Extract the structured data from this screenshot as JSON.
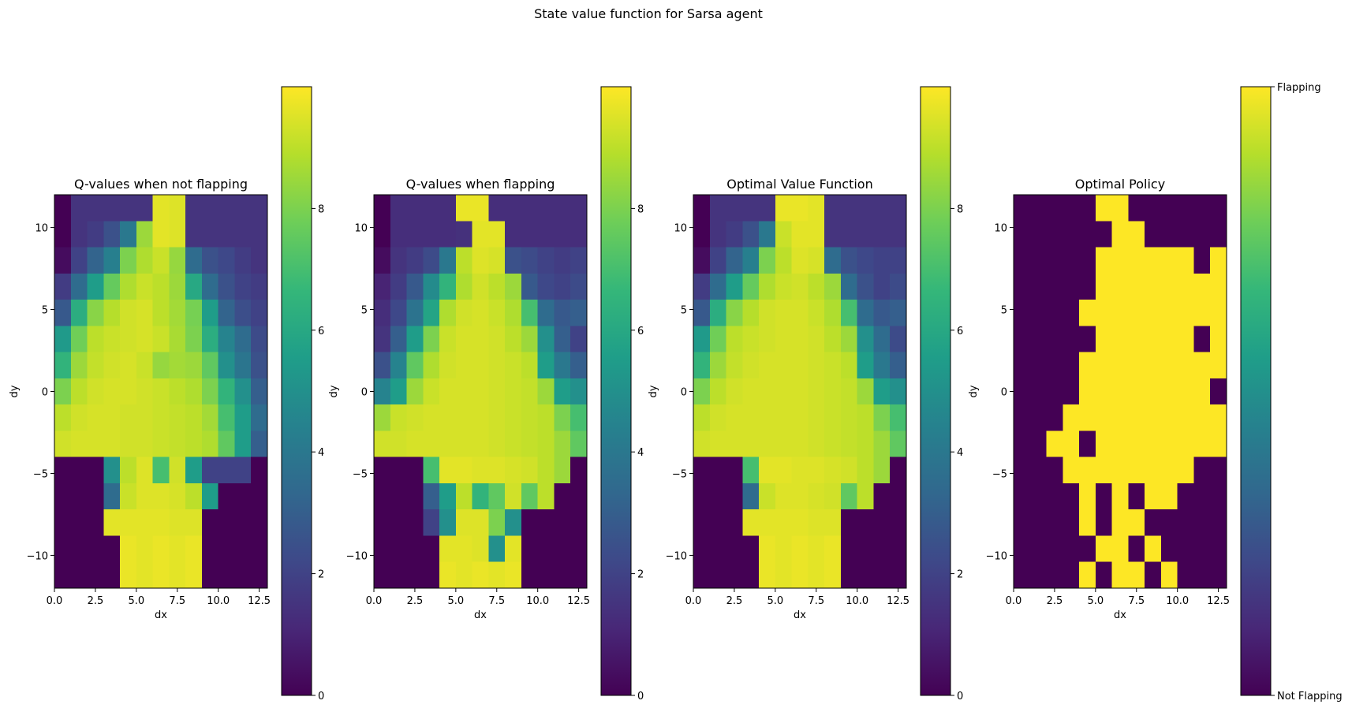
{
  "figure": {
    "suptitle": "State value function for Sarsa agent"
  },
  "colormap": {
    "name": "viridis",
    "stops": [
      "#440154",
      "#482878",
      "#3e4989",
      "#31688e",
      "#26828e",
      "#1f9e89",
      "#35b779",
      "#6ece58",
      "#b5de2b",
      "#fde725"
    ]
  },
  "chart_data": [
    {
      "type": "heatmap",
      "title": "Q-values when not flapping",
      "xlabel": "dx",
      "ylabel": "dy",
      "xlim": [
        0,
        13
      ],
      "ylim": [
        -12,
        12
      ],
      "xticks": [
        0,
        2.5,
        5,
        7.5,
        10,
        12.5
      ],
      "xtick_labels": [
        "0.0",
        "2.5",
        "5.0",
        "7.5",
        "10.0",
        "12.5"
      ],
      "yticks": [
        10,
        5,
        0,
        -5,
        -10
      ],
      "ytick_labels": [
        "10",
        "5",
        "0",
        "−5",
        "−10"
      ],
      "value_range": [
        0,
        10
      ],
      "colorbar": {
        "ticks": [
          0,
          2,
          4,
          6,
          8
        ],
        "labels": [
          "0",
          "2",
          "4",
          "6",
          "8"
        ]
      },
      "grid": false,
      "cell_size": {
        "dx": 1,
        "dy": 1.6
      },
      "rows_top_to_bottom": [
        [
          0.0,
          1.5,
          1.5,
          1.5,
          1.5,
          1.5,
          9.6,
          9.5,
          1.5,
          1.5,
          1.5,
          1.5,
          1.5
        ],
        [
          0.0,
          1.5,
          1.8,
          2.5,
          4.0,
          8.5,
          9.6,
          9.5,
          1.5,
          1.5,
          1.5,
          1.5,
          1.5
        ],
        [
          0.3,
          2.0,
          3.2,
          4.3,
          8.0,
          8.8,
          9.2,
          8.4,
          3.5,
          2.5,
          2.2,
          1.8,
          1.5
        ],
        [
          1.8,
          3.5,
          5.5,
          7.6,
          8.8,
          9.2,
          9.0,
          8.5,
          6.0,
          3.5,
          2.5,
          2.0,
          1.8
        ],
        [
          2.8,
          6.2,
          8.2,
          8.9,
          9.3,
          9.4,
          9.0,
          8.6,
          7.9,
          5.5,
          3.2,
          2.4,
          2.0
        ],
        [
          5.4,
          7.8,
          9.0,
          9.2,
          9.3,
          9.4,
          9.2,
          8.7,
          8.0,
          6.2,
          4.5,
          3.5,
          2.3
        ],
        [
          6.5,
          8.5,
          9.1,
          9.3,
          9.4,
          9.2,
          8.4,
          8.6,
          8.5,
          7.5,
          5.0,
          3.9,
          2.5
        ],
        [
          8.0,
          9.0,
          9.3,
          9.4,
          9.4,
          9.3,
          9.2,
          9.0,
          8.8,
          8.0,
          6.5,
          5.0,
          3.0
        ],
        [
          9.0,
          9.3,
          9.4,
          9.4,
          9.3,
          9.3,
          9.2,
          9.1,
          9.0,
          8.6,
          7.0,
          5.5,
          3.5
        ],
        [
          9.3,
          9.4,
          9.4,
          9.4,
          9.3,
          9.3,
          9.2,
          9.1,
          9.0,
          8.8,
          7.5,
          5.5,
          3.0
        ],
        [
          0.0,
          0.0,
          0.0,
          5.0,
          9.0,
          9.5,
          7.0,
          9.3,
          5.5,
          2.0,
          2.0,
          2.0,
          0.0
        ],
        [
          0.0,
          0.0,
          0.0,
          3.5,
          9.2,
          9.5,
          9.5,
          9.4,
          9.0,
          5.5,
          0.0,
          0.0,
          0.0
        ],
        [
          0.0,
          0.0,
          0.0,
          9.6,
          9.6,
          9.6,
          9.6,
          9.5,
          9.5,
          0.0,
          0.0,
          0.0,
          0.0
        ],
        [
          0.0,
          0.0,
          0.0,
          0.0,
          9.7,
          9.6,
          9.7,
          9.6,
          9.7,
          0.0,
          0.0,
          0.0,
          0.0
        ],
        [
          0.0,
          0.0,
          0.0,
          0.0,
          9.7,
          9.6,
          9.7,
          9.6,
          9.7,
          0.0,
          0.0,
          0.0,
          0.0
        ]
      ]
    },
    {
      "type": "heatmap",
      "title": "Q-values when flapping",
      "xlabel": "dx",
      "ylabel": "dy",
      "xlim": [
        0,
        13
      ],
      "ylim": [
        -12,
        12
      ],
      "xticks": [
        0,
        2.5,
        5,
        7.5,
        10,
        12.5
      ],
      "xtick_labels": [
        "0.0",
        "2.5",
        "5.0",
        "7.5",
        "10.0",
        "12.5"
      ],
      "yticks": [
        10,
        5,
        0,
        -5,
        -10
      ],
      "ytick_labels": [
        "10",
        "5",
        "0",
        "−5",
        "−10"
      ],
      "value_range": [
        0,
        10
      ],
      "colorbar": {
        "ticks": [
          0,
          2,
          4,
          6,
          8
        ],
        "labels": [
          "0",
          "2",
          "4",
          "6",
          "8"
        ]
      },
      "grid": false,
      "cell_size": {
        "dx": 1,
        "dy": 1.6
      },
      "rows_top_to_bottom": [
        [
          0.0,
          1.3,
          1.3,
          1.3,
          1.3,
          9.7,
          9.7,
          1.3,
          1.3,
          1.3,
          1.3,
          1.3,
          1.3
        ],
        [
          0.0,
          1.3,
          1.3,
          1.3,
          1.3,
          1.4,
          9.6,
          9.6,
          1.3,
          1.3,
          1.3,
          1.3,
          1.3
        ],
        [
          0.3,
          1.5,
          1.8,
          2.3,
          4.0,
          9.0,
          9.5,
          9.4,
          2.5,
          2.3,
          2.0,
          1.8,
          2.0
        ],
        [
          1.0,
          1.8,
          2.8,
          4.8,
          6.5,
          8.8,
          9.3,
          9.0,
          8.5,
          2.8,
          2.2,
          2.0,
          2.3
        ],
        [
          1.3,
          2.2,
          3.8,
          5.8,
          8.8,
          9.3,
          9.4,
          9.2,
          8.8,
          7.0,
          3.5,
          2.8,
          3.0
        ],
        [
          1.5,
          3.0,
          5.5,
          8.0,
          9.2,
          9.4,
          9.4,
          9.3,
          9.0,
          8.5,
          5.0,
          3.0,
          2.0
        ],
        [
          2.5,
          4.5,
          7.5,
          8.8,
          9.3,
          9.4,
          9.4,
          9.3,
          9.2,
          9.0,
          5.5,
          4.0,
          3.0
        ],
        [
          4.5,
          5.5,
          8.5,
          9.2,
          9.4,
          9.4,
          9.4,
          9.3,
          9.2,
          9.1,
          8.5,
          5.5,
          5.0
        ],
        [
          8.5,
          9.2,
          9.3,
          9.4,
          9.4,
          9.4,
          9.4,
          9.3,
          9.2,
          9.1,
          9.0,
          8.0,
          7.0
        ],
        [
          9.3,
          9.3,
          9.4,
          9.4,
          9.4,
          9.4,
          9.4,
          9.3,
          9.2,
          9.1,
          9.0,
          8.5,
          7.5
        ],
        [
          0.0,
          0.0,
          0.0,
          7.0,
          9.6,
          9.6,
          9.5,
          9.5,
          9.4,
          9.3,
          9.0,
          8.5,
          0.0
        ],
        [
          0.0,
          0.0,
          0.0,
          3.0,
          5.5,
          9.0,
          6.5,
          7.5,
          9.3,
          7.5,
          9.0,
          0.0,
          0.0
        ],
        [
          0.0,
          0.0,
          0.0,
          2.0,
          5.0,
          9.5,
          9.5,
          8.0,
          5.0,
          0.0,
          0.0,
          0.0,
          0.0
        ],
        [
          0.0,
          0.0,
          0.0,
          0.0,
          9.6,
          9.6,
          9.5,
          5.0,
          9.6,
          0.0,
          0.0,
          0.0,
          0.0
        ],
        [
          0.0,
          0.0,
          0.0,
          0.0,
          9.7,
          9.6,
          9.7,
          9.6,
          9.7,
          0.0,
          0.0,
          0.0,
          0.0
        ]
      ]
    },
    {
      "type": "heatmap",
      "title": "Optimal Value Function",
      "xlabel": "dx",
      "ylabel": "dy",
      "xlim": [
        0,
        13
      ],
      "ylim": [
        -12,
        12
      ],
      "xticks": [
        0,
        2.5,
        5,
        7.5,
        10,
        12.5
      ],
      "xtick_labels": [
        "0.0",
        "2.5",
        "5.0",
        "7.5",
        "10.0",
        "12.5"
      ],
      "yticks": [
        10,
        5,
        0,
        -5,
        -10
      ],
      "ytick_labels": [
        "10",
        "5",
        "0",
        "−5",
        "−10"
      ],
      "value_range": [
        0,
        10
      ],
      "colorbar": {
        "ticks": [
          0,
          2,
          4,
          6,
          8
        ],
        "labels": [
          "0",
          "2",
          "4",
          "6",
          "8"
        ]
      },
      "grid": false,
      "cell_size": {
        "dx": 1,
        "dy": 1.6
      },
      "rows_top_to_bottom": [
        [
          0.0,
          1.5,
          1.5,
          1.5,
          1.5,
          9.7,
          9.7,
          9.6,
          1.5,
          1.5,
          1.5,
          1.5,
          1.5
        ],
        [
          0.0,
          1.5,
          1.8,
          2.5,
          4.0,
          9.2,
          9.6,
          9.6,
          1.5,
          1.5,
          1.5,
          1.5,
          1.5
        ],
        [
          0.3,
          2.0,
          3.2,
          4.3,
          8.0,
          9.0,
          9.5,
          9.4,
          3.5,
          2.5,
          2.2,
          2.0,
          2.0
        ],
        [
          1.8,
          3.5,
          5.5,
          7.6,
          8.8,
          9.2,
          9.3,
          9.0,
          8.5,
          3.5,
          2.5,
          2.0,
          2.3
        ],
        [
          2.8,
          6.2,
          8.2,
          8.9,
          9.3,
          9.4,
          9.4,
          9.2,
          8.8,
          7.0,
          3.5,
          2.8,
          3.0
        ],
        [
          5.4,
          7.8,
          9.0,
          9.2,
          9.3,
          9.4,
          9.4,
          9.3,
          9.0,
          8.5,
          5.0,
          3.5,
          2.3
        ],
        [
          6.5,
          8.5,
          9.1,
          9.3,
          9.4,
          9.4,
          9.4,
          9.3,
          9.2,
          9.0,
          5.5,
          4.0,
          3.0
        ],
        [
          8.0,
          9.0,
          9.3,
          9.4,
          9.4,
          9.4,
          9.4,
          9.3,
          9.2,
          9.1,
          8.5,
          5.5,
          5.0
        ],
        [
          9.0,
          9.3,
          9.4,
          9.4,
          9.4,
          9.4,
          9.4,
          9.3,
          9.2,
          9.1,
          9.0,
          8.0,
          7.0
        ],
        [
          9.3,
          9.4,
          9.4,
          9.4,
          9.4,
          9.4,
          9.4,
          9.3,
          9.2,
          9.1,
          9.0,
          8.5,
          7.5
        ],
        [
          0.0,
          0.0,
          0.0,
          7.0,
          9.6,
          9.6,
          9.5,
          9.5,
          9.4,
          9.3,
          9.0,
          8.5,
          0.0
        ],
        [
          0.0,
          0.0,
          0.0,
          3.5,
          9.2,
          9.5,
          9.5,
          9.4,
          9.3,
          7.5,
          9.0,
          0.0,
          0.0
        ],
        [
          0.0,
          0.0,
          0.0,
          9.6,
          9.6,
          9.6,
          9.6,
          9.5,
          9.5,
          0.0,
          0.0,
          0.0,
          0.0
        ],
        [
          0.0,
          0.0,
          0.0,
          0.0,
          9.7,
          9.6,
          9.7,
          9.6,
          9.7,
          0.0,
          0.0,
          0.0,
          0.0
        ],
        [
          0.0,
          0.0,
          0.0,
          0.0,
          9.7,
          9.6,
          9.7,
          9.6,
          9.7,
          0.0,
          0.0,
          0.0,
          0.0
        ]
      ]
    },
    {
      "type": "heatmap",
      "title": "Optimal Policy",
      "xlabel": "dx",
      "ylabel": "dy",
      "xlim": [
        0,
        13
      ],
      "ylim": [
        -12,
        12
      ],
      "xticks": [
        0,
        2.5,
        5,
        7.5,
        10,
        12.5
      ],
      "xtick_labels": [
        "0.0",
        "2.5",
        "5.0",
        "7.5",
        "10.0",
        "12.5"
      ],
      "yticks": [
        10,
        5,
        0,
        -5,
        -10
      ],
      "ytick_labels": [
        "10",
        "5",
        "0",
        "−5",
        "−10"
      ],
      "value_range": [
        0,
        1
      ],
      "colorbar": {
        "ticks": [
          0,
          1
        ],
        "labels": [
          "Not Flapping",
          "Flapping"
        ]
      },
      "grid": false,
      "cell_size": {
        "dx": 1,
        "dy": 1.6
      },
      "rows_top_to_bottom": [
        [
          0,
          0,
          0,
          0,
          0,
          1,
          1,
          0,
          0,
          0,
          0,
          0,
          0
        ],
        [
          0,
          0,
          0,
          0,
          0,
          0,
          1,
          1,
          0,
          0,
          0,
          0,
          0
        ],
        [
          0,
          0,
          0,
          0,
          0,
          1,
          1,
          1,
          1,
          1,
          1,
          0,
          1
        ],
        [
          0,
          0,
          0,
          0,
          0,
          1,
          1,
          1,
          1,
          1,
          1,
          1,
          1
        ],
        [
          0,
          0,
          0,
          0,
          1,
          1,
          1,
          1,
          1,
          1,
          1,
          1,
          1
        ],
        [
          0,
          0,
          0,
          0,
          0,
          1,
          1,
          1,
          1,
          1,
          1,
          0,
          1
        ],
        [
          0,
          0,
          0,
          0,
          1,
          1,
          1,
          1,
          1,
          1,
          1,
          1,
          1
        ],
        [
          0,
          0,
          0,
          0,
          1,
          1,
          1,
          1,
          1,
          1,
          1,
          1,
          0
        ],
        [
          0,
          0,
          0,
          1,
          1,
          1,
          1,
          1,
          1,
          1,
          1,
          1,
          1
        ],
        [
          0,
          0,
          1,
          1,
          0,
          1,
          1,
          1,
          1,
          1,
          1,
          1,
          1
        ],
        [
          0,
          0,
          0,
          1,
          1,
          1,
          1,
          1,
          1,
          1,
          1,
          0,
          0
        ],
        [
          0,
          0,
          0,
          0,
          1,
          0,
          1,
          0,
          1,
          1,
          0,
          0,
          0
        ],
        [
          0,
          0,
          0,
          0,
          1,
          0,
          1,
          1,
          0,
          0,
          0,
          0,
          0
        ],
        [
          0,
          0,
          0,
          0,
          0,
          1,
          1,
          0,
          1,
          0,
          0,
          0,
          0
        ],
        [
          0,
          0,
          0,
          0,
          1,
          0,
          1,
          1,
          0,
          1,
          0,
          0,
          0
        ]
      ]
    }
  ]
}
